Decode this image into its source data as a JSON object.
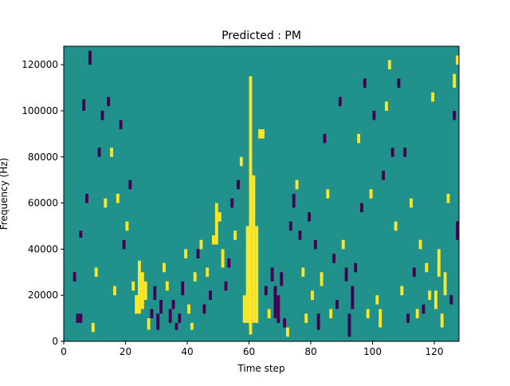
{
  "chart_data": {
    "type": "heatmap",
    "title": "Predicted : PM",
    "xlabel": "Time step",
    "ylabel": "Frequency (Hz)",
    "xlim": [
      0,
      128
    ],
    "ylim": [
      0,
      128000
    ],
    "x_ticks": [
      0,
      20,
      40,
      60,
      80,
      100,
      120
    ],
    "y_ticks": [
      0,
      20000,
      40000,
      60000,
      80000,
      100000,
      120000
    ],
    "n_time_steps": 128,
    "n_freq_bins": 128,
    "bin_width_hz": 1000,
    "colors": {
      "background": "#21918c",
      "high": "#fde725",
      "low": "#440154"
    },
    "background_value": 0,
    "grid": false,
    "legend": "none",
    "high_cells_note": "value 1 = yellow",
    "low_cells_note": "value -1 = purple",
    "cells": [
      {
        "t": 60,
        "f0": 3000,
        "f1": 115000,
        "v": 1
      },
      {
        "t": 59,
        "f0": 8000,
        "f1": 50000,
        "v": 1
      },
      {
        "t": 61,
        "f0": 8000,
        "f1": 72000,
        "v": 1
      },
      {
        "t": 62,
        "f0": 8000,
        "f1": 50000,
        "v": 1
      },
      {
        "t": 58,
        "f0": 8000,
        "f1": 20000,
        "v": 1
      },
      {
        "t": 63,
        "f0": 88000,
        "f1": 92000,
        "v": 1
      },
      {
        "t": 64,
        "f0": 88000,
        "f1": 92000,
        "v": 1
      },
      {
        "t": 23,
        "f0": 12000,
        "f1": 20000,
        "v": 1
      },
      {
        "t": 24,
        "f0": 12000,
        "f1": 35000,
        "v": 1
      },
      {
        "t": 25,
        "f0": 14000,
        "f1": 30000,
        "v": 1
      },
      {
        "t": 26,
        "f0": 18000,
        "f1": 26000,
        "v": 1
      },
      {
        "t": 27,
        "f0": 5000,
        "f1": 10000,
        "v": 1
      },
      {
        "t": 22,
        "f0": 22000,
        "f1": 26000,
        "v": 1
      },
      {
        "t": 49,
        "f0": 42000,
        "f1": 60000,
        "v": 1
      },
      {
        "t": 48,
        "f0": 42000,
        "f1": 46000,
        "v": 1
      },
      {
        "t": 50,
        "f0": 52000,
        "f1": 56000,
        "v": 1
      },
      {
        "t": 51,
        "f0": 32000,
        "f1": 40000,
        "v": 1
      },
      {
        "t": 4,
        "f0": 8000,
        "f1": 12000,
        "v": -1
      },
      {
        "t": 5,
        "f0": 8000,
        "f1": 12000,
        "v": -1
      },
      {
        "t": 5,
        "f0": 45000,
        "f1": 48000,
        "v": -1
      },
      {
        "t": 6,
        "f0": 100000,
        "f1": 105000,
        "v": -1
      },
      {
        "t": 7,
        "f0": 60000,
        "f1": 64000,
        "v": -1
      },
      {
        "t": 3,
        "f0": 26000,
        "f1": 30000,
        "v": -1
      },
      {
        "t": 8,
        "f0": 120000,
        "f1": 126000,
        "v": -1
      },
      {
        "t": 9,
        "f0": 4000,
        "f1": 8000,
        "v": 1
      },
      {
        "t": 10,
        "f0": 28000,
        "f1": 32000,
        "v": 1
      },
      {
        "t": 11,
        "f0": 80000,
        "f1": 84000,
        "v": -1
      },
      {
        "t": 12,
        "f0": 96000,
        "f1": 100000,
        "v": -1
      },
      {
        "t": 13,
        "f0": 58000,
        "f1": 62000,
        "v": 1
      },
      {
        "t": 14,
        "f0": 102000,
        "f1": 106000,
        "v": -1
      },
      {
        "t": 15,
        "f0": 80000,
        "f1": 84000,
        "v": 1
      },
      {
        "t": 16,
        "f0": 20000,
        "f1": 24000,
        "v": 1
      },
      {
        "t": 17,
        "f0": 60000,
        "f1": 64000,
        "v": 1
      },
      {
        "t": 18,
        "f0": 92000,
        "f1": 96000,
        "v": -1
      },
      {
        "t": 19,
        "f0": 40000,
        "f1": 44000,
        "v": -1
      },
      {
        "t": 20,
        "f0": 48000,
        "f1": 52000,
        "v": 1
      },
      {
        "t": 21,
        "f0": 66000,
        "f1": 70000,
        "v": -1
      },
      {
        "t": 28,
        "f0": 10000,
        "f1": 14000,
        "v": -1
      },
      {
        "t": 29,
        "f0": 18000,
        "f1": 24000,
        "v": -1
      },
      {
        "t": 30,
        "f0": 5000,
        "f1": 12000,
        "v": -1
      },
      {
        "t": 31,
        "f0": 12000,
        "f1": 18000,
        "v": -1
      },
      {
        "t": 32,
        "f0": 30000,
        "f1": 34000,
        "v": 1
      },
      {
        "t": 33,
        "f0": 22000,
        "f1": 26000,
        "v": 1
      },
      {
        "t": 34,
        "f0": 8000,
        "f1": 14000,
        "v": -1
      },
      {
        "t": 35,
        "f0": 14000,
        "f1": 18000,
        "v": -1
      },
      {
        "t": 36,
        "f0": 5000,
        "f1": 8000,
        "v": -1
      },
      {
        "t": 37,
        "f0": 8000,
        "f1": 12000,
        "v": -1
      },
      {
        "t": 38,
        "f0": 20000,
        "f1": 26000,
        "v": -1
      },
      {
        "t": 39,
        "f0": 36000,
        "f1": 40000,
        "v": 1
      },
      {
        "t": 40,
        "f0": 12000,
        "f1": 16000,
        "v": 1
      },
      {
        "t": 41,
        "f0": 5000,
        "f1": 8000,
        "v": 1
      },
      {
        "t": 42,
        "f0": 26000,
        "f1": 30000,
        "v": 1
      },
      {
        "t": 43,
        "f0": 36000,
        "f1": 40000,
        "v": -1
      },
      {
        "t": 44,
        "f0": 40000,
        "f1": 44000,
        "v": 1
      },
      {
        "t": 45,
        "f0": 12000,
        "f1": 16000,
        "v": -1
      },
      {
        "t": 46,
        "f0": 28000,
        "f1": 32000,
        "v": 1
      },
      {
        "t": 47,
        "f0": 18000,
        "f1": 22000,
        "v": -1
      },
      {
        "t": 52,
        "f0": 22000,
        "f1": 26000,
        "v": -1
      },
      {
        "t": 53,
        "f0": 32000,
        "f1": 36000,
        "v": -1
      },
      {
        "t": 54,
        "f0": 58000,
        "f1": 62000,
        "v": -1
      },
      {
        "t": 55,
        "f0": 44000,
        "f1": 48000,
        "v": 1
      },
      {
        "t": 56,
        "f0": 66000,
        "f1": 70000,
        "v": -1
      },
      {
        "t": 57,
        "f0": 76000,
        "f1": 80000,
        "v": 1
      },
      {
        "t": 65,
        "f0": 20000,
        "f1": 24000,
        "v": -1
      },
      {
        "t": 66,
        "f0": 10000,
        "f1": 14000,
        "v": 1
      },
      {
        "t": 67,
        "f0": 26000,
        "f1": 32000,
        "v": -1
      },
      {
        "t": 68,
        "f0": 10000,
        "f1": 24000,
        "v": -1
      },
      {
        "t": 69,
        "f0": 8000,
        "f1": 20000,
        "v": -1
      },
      {
        "t": 70,
        "f0": 24000,
        "f1": 30000,
        "v": -1
      },
      {
        "t": 71,
        "f0": 6000,
        "f1": 10000,
        "v": -1
      },
      {
        "t": 72,
        "f0": 2000,
        "f1": 6000,
        "v": 1
      },
      {
        "t": 73,
        "f0": 48000,
        "f1": 52000,
        "v": -1
      },
      {
        "t": 74,
        "f0": 58000,
        "f1": 64000,
        "v": -1
      },
      {
        "t": 75,
        "f0": 66000,
        "f1": 70000,
        "v": 1
      },
      {
        "t": 76,
        "f0": 44000,
        "f1": 48000,
        "v": -1
      },
      {
        "t": 77,
        "f0": 28000,
        "f1": 32000,
        "v": 1
      },
      {
        "t": 78,
        "f0": 8000,
        "f1": 12000,
        "v": 1
      },
      {
        "t": 79,
        "f0": 52000,
        "f1": 56000,
        "v": -1
      },
      {
        "t": 80,
        "f0": 18000,
        "f1": 22000,
        "v": 1
      },
      {
        "t": 81,
        "f0": 40000,
        "f1": 44000,
        "v": -1
      },
      {
        "t": 82,
        "f0": 5000,
        "f1": 12000,
        "v": -1
      },
      {
        "t": 83,
        "f0": 24000,
        "f1": 30000,
        "v": 1
      },
      {
        "t": 84,
        "f0": 86000,
        "f1": 90000,
        "v": -1
      },
      {
        "t": 85,
        "f0": 62000,
        "f1": 66000,
        "v": 1
      },
      {
        "t": 86,
        "f0": 10000,
        "f1": 14000,
        "v": 1
      },
      {
        "t": 87,
        "f0": 34000,
        "f1": 38000,
        "v": -1
      },
      {
        "t": 88,
        "f0": 14000,
        "f1": 18000,
        "v": -1
      },
      {
        "t": 89,
        "f0": 102000,
        "f1": 106000,
        "v": -1
      },
      {
        "t": 90,
        "f0": 40000,
        "f1": 44000,
        "v": 1
      },
      {
        "t": 91,
        "f0": 26000,
        "f1": 32000,
        "v": -1
      },
      {
        "t": 92,
        "f0": 2000,
        "f1": 12000,
        "v": -1
      },
      {
        "t": 93,
        "f0": 14000,
        "f1": 24000,
        "v": -1
      },
      {
        "t": 94,
        "f0": 30000,
        "f1": 34000,
        "v": -1
      },
      {
        "t": 95,
        "f0": 86000,
        "f1": 90000,
        "v": 1
      },
      {
        "t": 96,
        "f0": 56000,
        "f1": 60000,
        "v": -1
      },
      {
        "t": 97,
        "f0": 110000,
        "f1": 114000,
        "v": -1
      },
      {
        "t": 98,
        "f0": 10000,
        "f1": 14000,
        "v": 1
      },
      {
        "t": 99,
        "f0": 62000,
        "f1": 66000,
        "v": 1
      },
      {
        "t": 100,
        "f0": 96000,
        "f1": 100000,
        "v": -1
      },
      {
        "t": 101,
        "f0": 16000,
        "f1": 20000,
        "v": 1
      },
      {
        "t": 102,
        "f0": 6000,
        "f1": 14000,
        "v": 1
      },
      {
        "t": 103,
        "f0": 70000,
        "f1": 74000,
        "v": -1
      },
      {
        "t": 104,
        "f0": 100000,
        "f1": 104000,
        "v": 1
      },
      {
        "t": 105,
        "f0": 118000,
        "f1": 122000,
        "v": 1
      },
      {
        "t": 106,
        "f0": 80000,
        "f1": 84000,
        "v": -1
      },
      {
        "t": 107,
        "f0": 48000,
        "f1": 52000,
        "v": 1
      },
      {
        "t": 108,
        "f0": 110000,
        "f1": 114000,
        "v": -1
      },
      {
        "t": 109,
        "f0": 20000,
        "f1": 24000,
        "v": 1
      },
      {
        "t": 110,
        "f0": 80000,
        "f1": 84000,
        "v": -1
      },
      {
        "t": 111,
        "f0": 8000,
        "f1": 12000,
        "v": -1
      },
      {
        "t": 112,
        "f0": 58000,
        "f1": 62000,
        "v": 1
      },
      {
        "t": 113,
        "f0": 28000,
        "f1": 32000,
        "v": -1
      },
      {
        "t": 114,
        "f0": 10000,
        "f1": 14000,
        "v": 1
      },
      {
        "t": 115,
        "f0": 40000,
        "f1": 44000,
        "v": 1
      },
      {
        "t": 116,
        "f0": 12000,
        "f1": 16000,
        "v": -1
      },
      {
        "t": 117,
        "f0": 30000,
        "f1": 34000,
        "v": 1
      },
      {
        "t": 118,
        "f0": 18000,
        "f1": 22000,
        "v": 1
      },
      {
        "t": 119,
        "f0": 104000,
        "f1": 108000,
        "v": 1
      },
      {
        "t": 120,
        "f0": 14000,
        "f1": 22000,
        "v": 1
      },
      {
        "t": 121,
        "f0": 28000,
        "f1": 40000,
        "v": 1
      },
      {
        "t": 122,
        "f0": 6000,
        "f1": 12000,
        "v": 1
      },
      {
        "t": 123,
        "f0": 20000,
        "f1": 30000,
        "v": 1
      },
      {
        "t": 124,
        "f0": 60000,
        "f1": 64000,
        "v": 1
      },
      {
        "t": 125,
        "f0": 16000,
        "f1": 20000,
        "v": -1
      },
      {
        "t": 126,
        "f0": 96000,
        "f1": 100000,
        "v": -1
      },
      {
        "t": 127,
        "f0": 44000,
        "f1": 52000,
        "v": -1
      },
      {
        "t": 126,
        "f0": 110000,
        "f1": 116000,
        "v": 1
      },
      {
        "t": 127,
        "f0": 120000,
        "f1": 124000,
        "v": 1
      }
    ]
  }
}
